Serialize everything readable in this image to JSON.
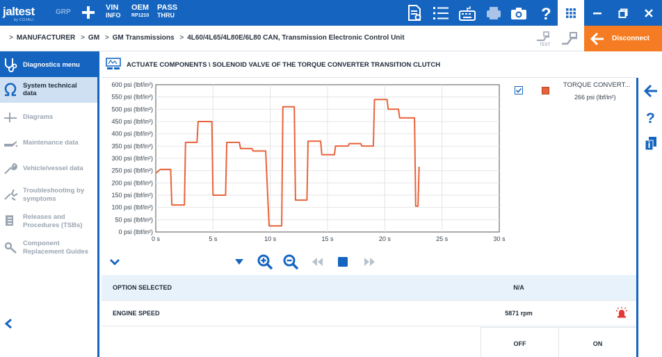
{
  "app": {
    "logo_text": "jaltest",
    "logo_sub": "by COJALI",
    "mode_badge": "GRP",
    "vin_label_1": "VIN",
    "vin_label_2": "INFO",
    "oem_label_1": "OEM",
    "oem_label_2": "RP1210",
    "pass_label_1": "PASS",
    "pass_label_2": "THRU"
  },
  "breadcrumb": {
    "items": [
      "MANUFACTURER",
      "GM",
      "GM Transmissions",
      "4L60/4L65/4L80E/6L80 CAN, Transmission Electronic Control Unit"
    ],
    "separator": ">"
  },
  "toolbar": {
    "test_label": "TEST",
    "disconnect_label": "Disconnect"
  },
  "sidebar": {
    "header": "Diagnostics menu",
    "items": [
      {
        "label_1": "System technical",
        "label_2": "data",
        "icon": "omega-icon",
        "active": true
      },
      {
        "label_1": "Diagrams",
        "label_2": "",
        "icon": "diagram-icon",
        "active": false
      },
      {
        "label_1": "Maintenance data",
        "label_2": "",
        "icon": "oil-can-icon",
        "active": false
      },
      {
        "label_1": "Vehicle/vessel data",
        "label_2": "",
        "icon": "wrench-icon",
        "active": false
      },
      {
        "label_1": "Troubleshooting by",
        "label_2": "symptoms",
        "icon": "tools-icon",
        "active": false
      },
      {
        "label_1": "Releases and",
        "label_2": "Procedures (TSBs)",
        "icon": "document-stack-icon",
        "active": false
      },
      {
        "label_1": "Component",
        "label_2": "Replacement Guides",
        "icon": "gear-wrench-icon",
        "active": false
      }
    ]
  },
  "main": {
    "title": "ACTUATE COMPONENTS \\ SOLENOID VALVE OF THE TORQUE CONVERTER TRANSITION CLUTCH",
    "legend": {
      "name": "TORQUE CONVERT...",
      "value": "266 psi (lbf/in²)",
      "color": "#e8623a"
    }
  },
  "chart_data": {
    "type": "line",
    "title": "",
    "xlabel": "",
    "ylabel": "",
    "xlim": [
      0,
      30
    ],
    "ylim": [
      0,
      600
    ],
    "x_ticks": [
      "0 s",
      "5 s",
      "10 s",
      "15 s",
      "20 s",
      "25 s",
      "30 s"
    ],
    "y_ticks": [
      "0 psi (lbf/in²)",
      "50 psi (lbf/in²)",
      "100 psi (lbf/in²)",
      "150 psi (lbf/in²)",
      "200 psi (lbf/in²)",
      "250 psi (lbf/in²)",
      "300 psi (lbf/in²)",
      "350 psi (lbf/in²)",
      "400 psi (lbf/in²)",
      "450 psi (lbf/in²)",
      "500 psi (lbf/in²)",
      "550 psi (lbf/in²)",
      "600 psi (lbf/in²)"
    ],
    "grid": true,
    "series": [
      {
        "name": "TORQUE CONVERT...",
        "color": "#e8623a",
        "x": [
          0,
          0.4,
          1.3,
          1.4,
          2.5,
          2.6,
          3.6,
          3.7,
          4.9,
          5.0,
          6.1,
          6.2,
          7.3,
          7.4,
          8.4,
          8.5,
          9.6,
          9.7,
          9.9,
          10.0,
          11.0,
          11.1,
          12.1,
          12.2,
          13.2,
          13.3,
          14.4,
          14.5,
          15.6,
          15.7,
          16.8,
          16.9,
          17.9,
          18.0,
          19.0,
          19.1,
          20.2,
          20.3,
          21.2,
          21.3,
          21.5,
          21.6,
          22.6,
          22.7,
          22.9,
          23.0
        ],
        "y": [
          240,
          255,
          255,
          110,
          110,
          365,
          365,
          450,
          450,
          150,
          150,
          365,
          365,
          340,
          340,
          330,
          330,
          225,
          25,
          25,
          25,
          510,
          510,
          130,
          130,
          370,
          370,
          315,
          315,
          350,
          350,
          360,
          360,
          350,
          350,
          540,
          540,
          500,
          500,
          465,
          465,
          465,
          465,
          105,
          105,
          266
        ]
      }
    ]
  },
  "table": {
    "rows": [
      {
        "name": "OPTION SELECTED",
        "value": "N/A"
      },
      {
        "name": "ENGINE SPEED",
        "value": "5871 rpm"
      }
    ],
    "off_label": "OFF",
    "on_label": "ON"
  },
  "colors": {
    "brand_blue": "#1565c0",
    "accent_orange": "#f57c22",
    "series_orange": "#e8623a",
    "active_row": "#cfe0f2",
    "alt_row": "#e7f2fa"
  }
}
